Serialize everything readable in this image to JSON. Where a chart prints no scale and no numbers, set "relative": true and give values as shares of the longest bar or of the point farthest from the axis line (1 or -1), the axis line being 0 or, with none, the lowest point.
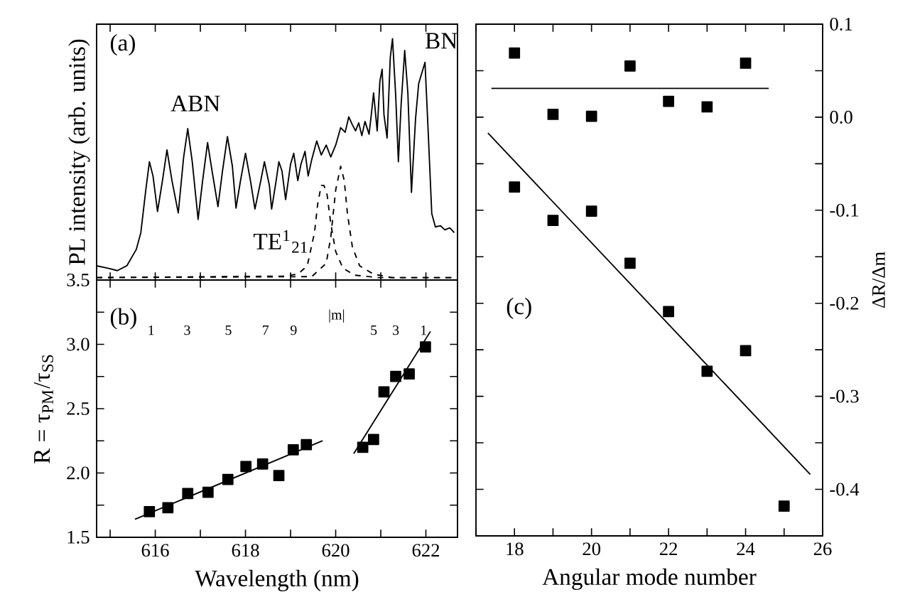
{
  "chart_data": [
    {
      "type": "line",
      "relative": true,
      "xlim": [
        614.7,
        622.7
      ],
      "tick_labels": false,
      "ylabel": "PL intensity (arb. units)",
      "annotations": [
        "(a)",
        "ABN",
        "BN",
        "TE$^{1}$$_{21}$"
      ],
      "series": [
        {
          "color": "#000000",
          "line_style": "solid",
          "x": [
            614.7,
            614.95,
            615.16,
            615.37,
            615.58,
            615.68,
            615.79,
            615.87,
            615.95,
            616.05,
            616.16,
            616.26,
            616.37,
            616.51,
            616.63,
            616.72,
            616.82,
            616.95,
            617.05,
            617.16,
            617.26,
            617.39,
            617.49,
            617.6,
            617.71,
            617.79,
            617.89,
            618.0,
            618.11,
            618.21,
            618.34,
            618.42,
            618.53,
            618.58,
            618.68,
            618.74,
            618.81,
            618.89,
            619.0,
            619.07,
            619.16,
            619.23,
            619.32,
            619.39,
            619.47,
            619.58,
            619.68,
            619.79,
            619.89,
            620.0,
            620.11,
            620.21,
            620.29,
            620.37,
            620.44,
            620.51,
            620.58,
            620.65,
            620.74,
            620.79,
            620.84,
            620.92,
            620.98,
            621.03,
            621.07,
            621.14,
            621.21,
            621.26,
            621.33,
            621.39,
            621.45,
            621.53,
            621.6,
            621.68,
            621.77,
            621.84,
            621.98,
            622.05,
            622.13,
            622.21,
            622.32,
            622.42,
            622.53,
            622.63
          ],
          "values": [
            0.059,
            0.049,
            0.039,
            0.059,
            0.127,
            0.196,
            0.373,
            0.49,
            0.431,
            0.284,
            0.412,
            0.539,
            0.412,
            0.278,
            0.51,
            0.627,
            0.49,
            0.251,
            0.412,
            0.569,
            0.451,
            0.304,
            0.451,
            0.594,
            0.471,
            0.298,
            0.412,
            0.525,
            0.412,
            0.294,
            0.412,
            0.49,
            0.392,
            0.294,
            0.412,
            0.49,
            0.451,
            0.333,
            0.48,
            0.525,
            0.412,
            0.48,
            0.533,
            0.431,
            0.5,
            0.576,
            0.518,
            0.559,
            0.51,
            0.559,
            0.631,
            0.612,
            0.676,
            0.643,
            0.618,
            0.651,
            0.598,
            0.657,
            0.604,
            0.686,
            0.775,
            0.618,
            0.824,
            0.873,
            0.686,
            0.588,
            0.922,
            1,
            0.765,
            0.49,
            0.725,
            0.951,
            0.775,
            0.363,
            0.667,
            0.814,
            0.902,
            0.618,
            0.275,
            0.22,
            0.225,
            0.208,
            0.216,
            0.196
          ]
        },
        {
          "color": "#000000",
          "line_style": "dashed",
          "x": [
            614.7,
            618.84,
            619.16,
            619.37,
            619.53,
            619.6,
            619.68,
            619.74,
            619.81,
            619.89,
            620.0,
            620.16,
            620.42,
            620.95,
            622.63
          ],
          "values": [
            0.01,
            0.016,
            0.024,
            0.059,
            0.196,
            0.314,
            0.392,
            0.392,
            0.353,
            0.235,
            0.118,
            0.049,
            0.02,
            0.01,
            0.01
          ]
        },
        {
          "color": "#000000",
          "line_style": "dashed",
          "x": [
            614.7,
            619.47,
            619.79,
            619.89,
            620.0,
            620.11,
            620.19,
            620.26,
            620.37,
            620.53,
            620.84,
            621.26,
            622.63
          ],
          "values": [
            0.01,
            0.014,
            0.069,
            0.176,
            0.373,
            0.471,
            0.412,
            0.275,
            0.137,
            0.059,
            0.024,
            0.01,
            0.01
          ]
        }
      ]
    },
    {
      "type": "scatter",
      "marker": "square",
      "xlim": [
        614.7,
        622.7
      ],
      "ylim": [
        1.5,
        3.5
      ],
      "xlabel": "Wavelength (nm)",
      "ylabel": "R = τ$_{PM}$/τ$_{SS}$",
      "xticks": [
        {
          "value": 615,
          "label": null
        },
        616,
        {
          "value": 617,
          "label": null
        },
        618,
        {
          "value": 619,
          "label": null
        },
        620,
        {
          "value": 621,
          "label": null
        },
        622
      ],
      "yticks": [
        1.5,
        {
          "value": 1.75,
          "label": null
        },
        {
          "value": 2,
          "label": "2.0"
        },
        {
          "value": 2.25,
          "label": null
        },
        2.5,
        {
          "value": 2.75,
          "label": null
        },
        {
          "value": 3,
          "label": "3.0"
        },
        {
          "value": 3.25,
          "label": null
        },
        3.5
      ],
      "annotations": [
        "(b)",
        "1",
        "3",
        "5",
        "7",
        "9",
        "|m|",
        "5",
        "3",
        "1"
      ],
      "series": [
        {
          "color": "#000000",
          "x": [
            615.87,
            616.28,
            616.72,
            617.17,
            617.61,
            618.01,
            618.38,
            618.74,
            619.06,
            619.35,
            620.6,
            620.84,
            621.07,
            621.33,
            621.63,
            621.99
          ],
          "values": [
            1.7,
            1.73,
            1.84,
            1.85,
            1.95,
            2.05,
            2.07,
            1.98,
            2.18,
            2.22,
            2.2,
            2.26,
            2.63,
            2.75,
            2.77,
            2.98
          ]
        },
        {
          "type": "line",
          "marker": "none",
          "color": "#000000",
          "x": [
            615.55,
            619.71
          ],
          "values": [
            1.64,
            2.25
          ]
        },
        {
          "type": "line",
          "marker": "none",
          "color": "#000000",
          "x": [
            620.4,
            622.1
          ],
          "values": [
            2.15,
            3.1
          ]
        }
      ]
    },
    {
      "type": "scatter",
      "marker": "square",
      "xlim": [
        17,
        26
      ],
      "ylim": [
        -0.45,
        0.1
      ],
      "xlabel": "Angular mode number",
      "ylabel": "ΔR/Δm",
      "xticks": [
        {
          "value": 17,
          "label": null
        },
        18,
        {
          "value": 19,
          "label": null
        },
        20,
        {
          "value": 21,
          "label": null
        },
        22,
        {
          "value": 23,
          "label": null
        },
        24,
        {
          "value": 25,
          "label": null
        },
        26
      ],
      "yticks": [
        {
          "value": -0.45,
          "label": null
        },
        -0.4,
        {
          "value": -0.35,
          "label": null
        },
        -0.3,
        {
          "value": -0.25,
          "label": null
        },
        -0.2,
        {
          "value": -0.15,
          "label": null
        },
        -0.1,
        {
          "value": -0.05,
          "label": null
        },
        {
          "value": 0,
          "label": "0.0"
        },
        {
          "value": 0.05,
          "label": null
        },
        0.1
      ],
      "annotations": [
        "(c)"
      ],
      "series": [
        {
          "color": "#000000",
          "x": [
            18,
            19,
            20,
            21,
            22,
            23,
            24
          ],
          "values": [
            0.069,
            0.003,
            0.001,
            0.055,
            0.017,
            0.011,
            0.058
          ]
        },
        {
          "color": "#000000",
          "x": [
            18,
            19,
            20,
            21,
            22,
            23,
            24,
            25
          ],
          "values": [
            -0.075,
            -0.111,
            -0.101,
            -0.157,
            -0.209,
            -0.273,
            -0.251,
            -0.418
          ]
        },
        {
          "type": "line",
          "marker": "none",
          "color": "#000000",
          "x": [
            17.4,
            24.6
          ],
          "values": [
            0.031,
            0.031
          ]
        },
        {
          "type": "line",
          "marker": "none",
          "color": "#000000",
          "x": [
            17.31,
            25.68
          ],
          "values": [
            -0.017,
            -0.384
          ]
        }
      ]
    }
  ]
}
